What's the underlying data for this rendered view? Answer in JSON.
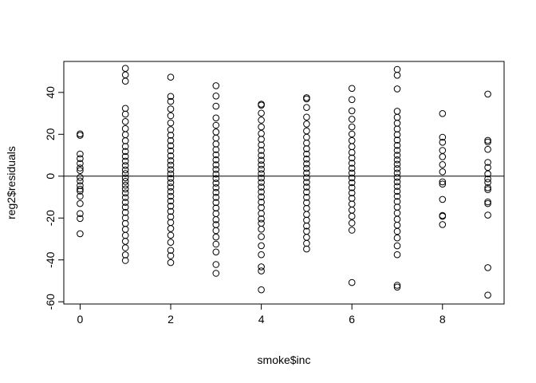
{
  "chart_data": {
    "type": "scatter",
    "title": "",
    "xlabel": "smoke$inc",
    "ylabel": "reg2$residuals",
    "xlim": [
      -0.36,
      9.36
    ],
    "ylim": [
      -61.07,
      54.8
    ],
    "xticks": [
      0,
      2,
      4,
      6,
      8
    ],
    "yticks": [
      -60,
      -40,
      -20,
      0,
      20,
      40
    ],
    "reference_line": {
      "orientation": "horizontal",
      "value": 0
    },
    "series": [
      {
        "name": "residuals",
        "points": [
          {
            "x": 0,
            "y": 20.2
          },
          {
            "x": 0,
            "y": 19.5
          },
          {
            "x": 0,
            "y": 10.6
          },
          {
            "x": 0,
            "y": 8.4
          },
          {
            "x": 0,
            "y": 6.1
          },
          {
            "x": 0,
            "y": 3.9
          },
          {
            "x": 0,
            "y": 2.7
          },
          {
            "x": 0,
            "y": -0.6
          },
          {
            "x": 0,
            "y": -2.3
          },
          {
            "x": 0,
            "y": -4.5
          },
          {
            "x": 0,
            "y": -6.2
          },
          {
            "x": 0,
            "y": -7.1
          },
          {
            "x": 0,
            "y": -9.6
          },
          {
            "x": 0,
            "y": -13.1
          },
          {
            "x": 0,
            "y": -17.9
          },
          {
            "x": 0,
            "y": -20.2
          },
          {
            "x": 0,
            "y": -27.5
          },
          {
            "x": 1,
            "y": 51.5
          },
          {
            "x": 1,
            "y": 48.4
          },
          {
            "x": 1,
            "y": 45.4
          },
          {
            "x": 1,
            "y": 32.4
          },
          {
            "x": 1,
            "y": 29.6
          },
          {
            "x": 1,
            "y": 26.1
          },
          {
            "x": 1,
            "y": 22.7
          },
          {
            "x": 1,
            "y": 19.8
          },
          {
            "x": 1,
            "y": 16.9
          },
          {
            "x": 1,
            "y": 14.2
          },
          {
            "x": 1,
            "y": 11.8
          },
          {
            "x": 1,
            "y": 9.4
          },
          {
            "x": 1,
            "y": 7.2
          },
          {
            "x": 1,
            "y": 5.1
          },
          {
            "x": 1,
            "y": 3.0
          },
          {
            "x": 1,
            "y": 1.2
          },
          {
            "x": 1,
            "y": -0.8
          },
          {
            "x": 1,
            "y": -2.5
          },
          {
            "x": 1,
            "y": -4.3
          },
          {
            "x": 1,
            "y": -6.1
          },
          {
            "x": 1,
            "y": -8.0
          },
          {
            "x": 1,
            "y": -10.2
          },
          {
            "x": 1,
            "y": -12.5
          },
          {
            "x": 1,
            "y": -14.8
          },
          {
            "x": 1,
            "y": -17.3
          },
          {
            "x": 1,
            "y": -19.9
          },
          {
            "x": 1,
            "y": -22.6
          },
          {
            "x": 1,
            "y": -25.4
          },
          {
            "x": 1,
            "y": -28.3
          },
          {
            "x": 1,
            "y": -31.1
          },
          {
            "x": 1,
            "y": -34.2
          },
          {
            "x": 1,
            "y": -37.6
          },
          {
            "x": 1,
            "y": -40.3
          },
          {
            "x": 2,
            "y": 47.3
          },
          {
            "x": 2,
            "y": 38.1
          },
          {
            "x": 2,
            "y": 35.7
          },
          {
            "x": 2,
            "y": 32.1
          },
          {
            "x": 2,
            "y": 28.9
          },
          {
            "x": 2,
            "y": 25.4
          },
          {
            "x": 2,
            "y": 22.2
          },
          {
            "x": 2,
            "y": 19.6
          },
          {
            "x": 2,
            "y": 17.0
          },
          {
            "x": 2,
            "y": 14.5
          },
          {
            "x": 2,
            "y": 12.1
          },
          {
            "x": 2,
            "y": 9.7
          },
          {
            "x": 2,
            "y": 7.4
          },
          {
            "x": 2,
            "y": 5.3
          },
          {
            "x": 2,
            "y": 3.1
          },
          {
            "x": 2,
            "y": 1.1
          },
          {
            "x": 2,
            "y": -1.0
          },
          {
            "x": 2,
            "y": -3.1
          },
          {
            "x": 2,
            "y": -5.2
          },
          {
            "x": 2,
            "y": -7.4
          },
          {
            "x": 2,
            "y": -9.6
          },
          {
            "x": 2,
            "y": -11.9
          },
          {
            "x": 2,
            "y": -14.3
          },
          {
            "x": 2,
            "y": -16.8
          },
          {
            "x": 2,
            "y": -19.4
          },
          {
            "x": 2,
            "y": -22.1
          },
          {
            "x": 2,
            "y": -25.0
          },
          {
            "x": 2,
            "y": -28.2
          },
          {
            "x": 2,
            "y": -31.6
          },
          {
            "x": 2,
            "y": -35.4
          },
          {
            "x": 2,
            "y": -38.0
          },
          {
            "x": 2,
            "y": -41.3
          },
          {
            "x": 3,
            "y": 43.2
          },
          {
            "x": 3,
            "y": 38.3
          },
          {
            "x": 3,
            "y": 33.4
          },
          {
            "x": 3,
            "y": 27.8
          },
          {
            "x": 3,
            "y": 24.3
          },
          {
            "x": 3,
            "y": 21.1
          },
          {
            "x": 3,
            "y": 18.2
          },
          {
            "x": 3,
            "y": 15.4
          },
          {
            "x": 3,
            "y": 12.7
          },
          {
            "x": 3,
            "y": 10.2
          },
          {
            "x": 3,
            "y": 7.8
          },
          {
            "x": 3,
            "y": 5.4
          },
          {
            "x": 3,
            "y": 3.2
          },
          {
            "x": 3,
            "y": 1.0
          },
          {
            "x": 3,
            "y": -1.1
          },
          {
            "x": 3,
            "y": -3.3
          },
          {
            "x": 3,
            "y": -5.5
          },
          {
            "x": 3,
            "y": -7.8
          },
          {
            "x": 3,
            "y": -10.1
          },
          {
            "x": 3,
            "y": -12.6
          },
          {
            "x": 3,
            "y": -15.2
          },
          {
            "x": 3,
            "y": -17.9
          },
          {
            "x": 3,
            "y": -20.8
          },
          {
            "x": 3,
            "y": -23.2
          },
          {
            "x": 3,
            "y": -26.0
          },
          {
            "x": 3,
            "y": -29.1
          },
          {
            "x": 3,
            "y": -32.5
          },
          {
            "x": 3,
            "y": -36.2
          },
          {
            "x": 3,
            "y": -42.2
          },
          {
            "x": 3,
            "y": -46.4
          },
          {
            "x": 4,
            "y": 34.4
          },
          {
            "x": 4,
            "y": 33.9
          },
          {
            "x": 4,
            "y": 30.1
          },
          {
            "x": 4,
            "y": 26.8
          },
          {
            "x": 4,
            "y": 23.5
          },
          {
            "x": 4,
            "y": 20.4
          },
          {
            "x": 4,
            "y": 17.6
          },
          {
            "x": 4,
            "y": 14.9
          },
          {
            "x": 4,
            "y": 12.3
          },
          {
            "x": 4,
            "y": 9.9
          },
          {
            "x": 4,
            "y": 7.6
          },
          {
            "x": 4,
            "y": 5.4
          },
          {
            "x": 4,
            "y": 3.3
          },
          {
            "x": 4,
            "y": 1.2
          },
          {
            "x": 4,
            "y": -0.9
          },
          {
            "x": 4,
            "y": -3.0
          },
          {
            "x": 4,
            "y": -5.2
          },
          {
            "x": 4,
            "y": -7.5
          },
          {
            "x": 4,
            "y": -9.9
          },
          {
            "x": 4,
            "y": -12.4
          },
          {
            "x": 4,
            "y": -15.0
          },
          {
            "x": 4,
            "y": -17.8
          },
          {
            "x": 4,
            "y": -20.4
          },
          {
            "x": 4,
            "y": -22.5
          },
          {
            "x": 4,
            "y": -25.3
          },
          {
            "x": 4,
            "y": -28.9
          },
          {
            "x": 4,
            "y": -33.2
          },
          {
            "x": 4,
            "y": -37.5
          },
          {
            "x": 4,
            "y": -43.3
          },
          {
            "x": 4,
            "y": -45.3
          },
          {
            "x": 4,
            "y": -54.3
          },
          {
            "x": 5,
            "y": 37.5
          },
          {
            "x": 5,
            "y": 36.9
          },
          {
            "x": 5,
            "y": 32.8
          },
          {
            "x": 5,
            "y": 28.2
          },
          {
            "x": 5,
            "y": 24.9
          },
          {
            "x": 5,
            "y": 21.6
          },
          {
            "x": 5,
            "y": 18.6
          },
          {
            "x": 5,
            "y": 15.8
          },
          {
            "x": 5,
            "y": 13.1
          },
          {
            "x": 5,
            "y": 10.6
          },
          {
            "x": 5,
            "y": 8.2
          },
          {
            "x": 5,
            "y": 5.9
          },
          {
            "x": 5,
            "y": 3.7
          },
          {
            "x": 5,
            "y": 1.5
          },
          {
            "x": 5,
            "y": -0.7
          },
          {
            "x": 5,
            "y": -2.9
          },
          {
            "x": 5,
            "y": -5.2
          },
          {
            "x": 5,
            "y": -7.6
          },
          {
            "x": 5,
            "y": -10.1
          },
          {
            "x": 5,
            "y": -12.7
          },
          {
            "x": 5,
            "y": -15.4
          },
          {
            "x": 5,
            "y": -18.3
          },
          {
            "x": 5,
            "y": -21.0
          },
          {
            "x": 5,
            "y": -23.8
          },
          {
            "x": 5,
            "y": -26.3
          },
          {
            "x": 5,
            "y": -29.2
          },
          {
            "x": 5,
            "y": -32.1
          },
          {
            "x": 5,
            "y": -34.8
          },
          {
            "x": 6,
            "y": 41.9
          },
          {
            "x": 6,
            "y": 36.6
          },
          {
            "x": 6,
            "y": 31.2
          },
          {
            "x": 6,
            "y": 27.2
          },
          {
            "x": 6,
            "y": 23.5
          },
          {
            "x": 6,
            "y": 20.1
          },
          {
            "x": 6,
            "y": 17.0
          },
          {
            "x": 6,
            "y": 14.1
          },
          {
            "x": 6,
            "y": 11.3
          },
          {
            "x": 6,
            "y": 8.7
          },
          {
            "x": 6,
            "y": 6.2
          },
          {
            "x": 6,
            "y": 3.8
          },
          {
            "x": 6,
            "y": 1.5
          },
          {
            "x": 6,
            "y": -0.8
          },
          {
            "x": 6,
            "y": -3.1
          },
          {
            "x": 6,
            "y": -5.5
          },
          {
            "x": 6,
            "y": -8.0
          },
          {
            "x": 6,
            "y": -10.6
          },
          {
            "x": 6,
            "y": -13.3
          },
          {
            "x": 6,
            "y": -16.2
          },
          {
            "x": 6,
            "y": -19.2
          },
          {
            "x": 6,
            "y": -22.4
          },
          {
            "x": 6,
            "y": -25.8
          },
          {
            "x": 6,
            "y": -50.8
          },
          {
            "x": 7,
            "y": 51.0
          },
          {
            "x": 7,
            "y": 48.2
          },
          {
            "x": 7,
            "y": 41.7
          },
          {
            "x": 7,
            "y": 31.0
          },
          {
            "x": 7,
            "y": 28.1
          },
          {
            "x": 7,
            "y": 25.3
          },
          {
            "x": 7,
            "y": 22.5
          },
          {
            "x": 7,
            "y": 19.8
          },
          {
            "x": 7,
            "y": 17.2
          },
          {
            "x": 7,
            "y": 14.7
          },
          {
            "x": 7,
            "y": 12.3
          },
          {
            "x": 7,
            "y": 10.0
          },
          {
            "x": 7,
            "y": 7.8
          },
          {
            "x": 7,
            "y": 5.7
          },
          {
            "x": 7,
            "y": 3.6
          },
          {
            "x": 7,
            "y": 1.5
          },
          {
            "x": 7,
            "y": -0.6
          },
          {
            "x": 7,
            "y": -2.7
          },
          {
            "x": 7,
            "y": -4.9
          },
          {
            "x": 7,
            "y": -7.2
          },
          {
            "x": 7,
            "y": -9.6
          },
          {
            "x": 7,
            "y": -12.1
          },
          {
            "x": 7,
            "y": -14.8
          },
          {
            "x": 7,
            "y": -17.6
          },
          {
            "x": 7,
            "y": -20.6
          },
          {
            "x": 7,
            "y": -23.4
          },
          {
            "x": 7,
            "y": -26.4
          },
          {
            "x": 7,
            "y": -29.5
          },
          {
            "x": 7,
            "y": -33.3
          },
          {
            "x": 7,
            "y": -37.5
          },
          {
            "x": 7,
            "y": -52.1
          },
          {
            "x": 7,
            "y": -53.0
          },
          {
            "x": 8,
            "y": 29.9
          },
          {
            "x": 8,
            "y": 18.6
          },
          {
            "x": 8,
            "y": 16.2
          },
          {
            "x": 8,
            "y": 12.3
          },
          {
            "x": 8,
            "y": 9.3
          },
          {
            "x": 8,
            "y": 5.5
          },
          {
            "x": 8,
            "y": 2.1
          },
          {
            "x": 8,
            "y": -2.7
          },
          {
            "x": 8,
            "y": -3.8
          },
          {
            "x": 8,
            "y": -11.1
          },
          {
            "x": 8,
            "y": -18.8
          },
          {
            "x": 8,
            "y": -19.2
          },
          {
            "x": 8,
            "y": -23.1
          },
          {
            "x": 9,
            "y": 39.2
          },
          {
            "x": 9,
            "y": 17.1
          },
          {
            "x": 9,
            "y": 16.3
          },
          {
            "x": 9,
            "y": 12.8
          },
          {
            "x": 9,
            "y": 6.6
          },
          {
            "x": 9,
            "y": 4.2
          },
          {
            "x": 9,
            "y": 1.1
          },
          {
            "x": 9,
            "y": -1.3
          },
          {
            "x": 9,
            "y": -3.0
          },
          {
            "x": 9,
            "y": -5.5
          },
          {
            "x": 9,
            "y": -6.4
          },
          {
            "x": 9,
            "y": -12.3
          },
          {
            "x": 9,
            "y": -13.1
          },
          {
            "x": 9,
            "y": -18.6
          },
          {
            "x": 9,
            "y": -43.7
          },
          {
            "x": 9,
            "y": -56.8
          }
        ]
      }
    ]
  }
}
